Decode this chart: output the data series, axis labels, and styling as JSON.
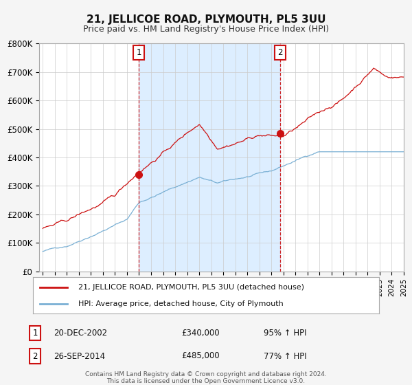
{
  "title": "21, JELLICOE ROAD, PLYMOUTH, PL5 3UU",
  "subtitle": "Price paid vs. HM Land Registry's House Price Index (HPI)",
  "title_fontsize": 11,
  "subtitle_fontsize": 9,
  "hpi_color": "#7ab0d4",
  "price_color": "#cc1111",
  "background_color": "#f5f5f5",
  "plot_bg_color": "#ffffff",
  "shaded_bg_color": "#ddeeff",
  "grid_color": "#cccccc",
  "ylim": [
    0,
    800000
  ],
  "yticks": [
    0,
    100000,
    200000,
    300000,
    400000,
    500000,
    600000,
    700000,
    800000
  ],
  "x_start_year": 1995,
  "x_end_year": 2025,
  "marker1_date": 2002.97,
  "marker1_price": 340000,
  "marker1_label": "1",
  "marker1_text": "20-DEC-2002",
  "marker1_price_str": "£340,000",
  "marker1_pct": "95% ↑ HPI",
  "marker2_date": 2014.74,
  "marker2_price": 485000,
  "marker2_label": "2",
  "marker2_text": "26-SEP-2014",
  "marker2_price_str": "£485,000",
  "marker2_pct": "77% ↑ HPI",
  "legend_line1": "21, JELLICOE ROAD, PLYMOUTH, PL5 3UU (detached house)",
  "legend_line2": "HPI: Average price, detached house, City of Plymouth",
  "footer1": "Contains HM Land Registry data © Crown copyright and database right 2024.",
  "footer2": "This data is licensed under the Open Government Licence v3.0."
}
